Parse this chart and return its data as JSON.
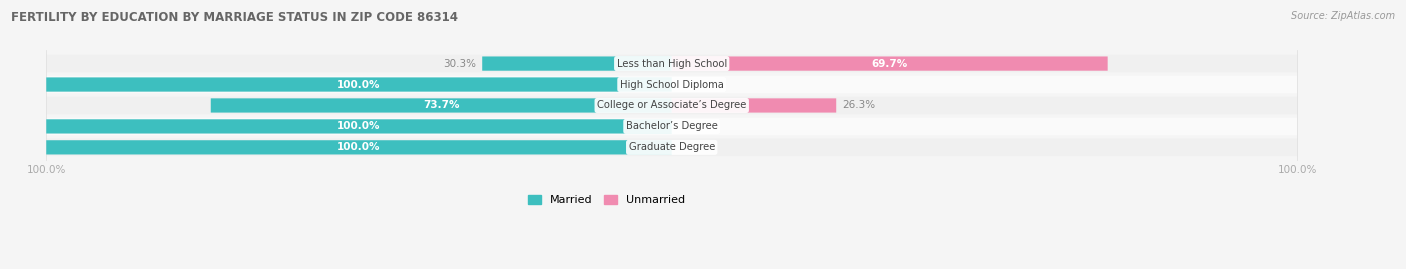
{
  "title": "FERTILITY BY EDUCATION BY MARRIAGE STATUS IN ZIP CODE 86314",
  "source": "Source: ZipAtlas.com",
  "categories": [
    "Less than High School",
    "High School Diploma",
    "College or Associate’s Degree",
    "Bachelor’s Degree",
    "Graduate Degree"
  ],
  "married": [
    30.3,
    100.0,
    73.7,
    100.0,
    100.0
  ],
  "unmarried": [
    69.7,
    0.0,
    26.3,
    0.0,
    0.0
  ],
  "married_color": "#3DBFBF",
  "unmarried_color": "#F08BB0",
  "row_colors": [
    "#F0F0F0",
    "#FAFAFA",
    "#F0F0F0",
    "#FAFAFA",
    "#F0F0F0"
  ],
  "fig_bg": "#F5F5F5",
  "text_white": "#FFFFFF",
  "text_dark": "#888888",
  "title_color": "#666666",
  "source_color": "#999999",
  "label_color": "#444444",
  "figsize": [
    14.06,
    2.69
  ],
  "dpi": 100
}
